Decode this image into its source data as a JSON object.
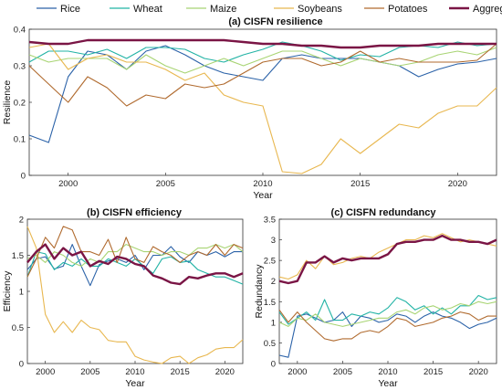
{
  "colors": {
    "Rice": "#2b62a8",
    "Wheat": "#22b3a5",
    "Maize": "#a8d473",
    "Soybeans": "#e8b74f",
    "Potatoes": "#b06a2e",
    "Aggregated": "#7a1545"
  },
  "legend": [
    "Rice",
    "Wheat",
    "Maize",
    "Soybeans",
    "Potatoes",
    "Aggregated"
  ],
  "chart_data": [
    {
      "id": "a",
      "type": "line",
      "title": "(a) CISFN resilience",
      "xlabel": "Year",
      "ylabel": "Resilience",
      "xlim": [
        1998,
        2022
      ],
      "ylim": [
        0,
        0.4
      ],
      "xticks": [
        2000,
        2005,
        2010,
        2015,
        2020
      ],
      "yticks": [
        0,
        0.1,
        0.2,
        0.3,
        0.4
      ],
      "ytick_labels": [
        "0",
        "0.1",
        "0.2",
        "0.3",
        "0.4"
      ],
      "x": [
        1998,
        1999,
        2000,
        2001,
        2002,
        2003,
        2004,
        2005,
        2006,
        2007,
        2008,
        2009,
        2010,
        2011,
        2012,
        2013,
        2014,
        2015,
        2016,
        2017,
        2018,
        2019,
        2020,
        2021,
        2022
      ],
      "series": [
        {
          "name": "Rice",
          "values": [
            0.11,
            0.09,
            0.27,
            0.34,
            0.33,
            0.29,
            0.34,
            0.355,
            0.33,
            0.3,
            0.28,
            0.27,
            0.26,
            0.32,
            0.33,
            0.32,
            0.32,
            0.32,
            0.31,
            0.3,
            0.27,
            0.29,
            0.305,
            0.31,
            0.32
          ]
        },
        {
          "name": "Wheat",
          "values": [
            0.31,
            0.34,
            0.34,
            0.33,
            0.345,
            0.32,
            0.35,
            0.35,
            0.345,
            0.32,
            0.31,
            0.33,
            0.345,
            0.365,
            0.355,
            0.34,
            0.315,
            0.33,
            0.325,
            0.35,
            0.355,
            0.35,
            0.365,
            0.355,
            0.36
          ]
        },
        {
          "name": "Maize",
          "values": [
            0.33,
            0.31,
            0.32,
            0.32,
            0.32,
            0.29,
            0.33,
            0.3,
            0.28,
            0.3,
            0.32,
            0.3,
            0.32,
            0.34,
            0.34,
            0.32,
            0.3,
            0.32,
            0.31,
            0.3,
            0.31,
            0.33,
            0.34,
            0.33,
            0.35
          ]
        },
        {
          "name": "Soybeans",
          "values": [
            0.35,
            0.36,
            0.29,
            0.32,
            0.33,
            0.31,
            0.31,
            0.29,
            0.26,
            0.28,
            0.22,
            0.2,
            0.19,
            0.01,
            0.005,
            0.03,
            0.1,
            0.06,
            0.1,
            0.14,
            0.13,
            0.17,
            0.19,
            0.19,
            0.24
          ]
        },
        {
          "name": "Potatoes",
          "values": [
            0.3,
            0.25,
            0.2,
            0.27,
            0.24,
            0.19,
            0.22,
            0.21,
            0.25,
            0.24,
            0.25,
            0.28,
            0.31,
            0.32,
            0.32,
            0.3,
            0.31,
            0.34,
            0.31,
            0.32,
            0.31,
            0.31,
            0.31,
            0.315,
            0.36
          ]
        },
        {
          "name": "Aggregated",
          "values": [
            0.365,
            0.36,
            0.36,
            0.37,
            0.37,
            0.37,
            0.37,
            0.37,
            0.37,
            0.37,
            0.37,
            0.365,
            0.36,
            0.36,
            0.355,
            0.355,
            0.35,
            0.35,
            0.355,
            0.355,
            0.355,
            0.36,
            0.36,
            0.36,
            0.36
          ]
        }
      ]
    },
    {
      "id": "b",
      "type": "line",
      "title": "(b) CISFN efficiency",
      "xlabel": "Year",
      "ylabel": "Efficiency",
      "xlim": [
        1998,
        2022
      ],
      "ylim": [
        0,
        2
      ],
      "xticks": [
        2000,
        2005,
        2010,
        2015,
        2020
      ],
      "yticks": [
        0,
        0.5,
        1,
        1.5,
        2
      ],
      "ytick_labels": [
        "0",
        "0.5",
        "1",
        "1.5",
        "2"
      ],
      "x": [
        1998,
        1999,
        2000,
        2001,
        2002,
        2003,
        2004,
        2005,
        2006,
        2007,
        2008,
        2009,
        2010,
        2011,
        2012,
        2013,
        2014,
        2015,
        2016,
        2017,
        2018,
        2019,
        2020,
        2021,
        2022
      ],
      "series": [
        {
          "name": "Rice",
          "values": [
            1.3,
            1.45,
            1.48,
            1.31,
            1.35,
            1.65,
            1.35,
            1.08,
            1.37,
            1.42,
            1.45,
            1.4,
            1.5,
            1.3,
            1.5,
            1.5,
            1.62,
            1.48,
            1.4,
            1.55,
            1.5,
            1.55,
            1.48,
            1.55,
            1.55
          ]
        },
        {
          "name": "Wheat",
          "values": [
            1.2,
            1.55,
            1.52,
            1.3,
            1.4,
            1.35,
            1.45,
            1.35,
            1.35,
            1.45,
            1.4,
            1.35,
            1.45,
            1.35,
            1.25,
            1.45,
            1.48,
            1.4,
            1.42,
            1.3,
            1.25,
            1.2,
            1.2,
            1.15,
            1.1
          ]
        },
        {
          "name": "Maize",
          "values": [
            1.45,
            1.5,
            1.4,
            1.55,
            1.5,
            1.4,
            1.35,
            1.45,
            1.4,
            1.55,
            1.55,
            1.65,
            1.6,
            1.55,
            1.55,
            1.5,
            1.55,
            1.55,
            1.5,
            1.6,
            1.6,
            1.65,
            1.6,
            1.65,
            1.55
          ]
        },
        {
          "name": "Soybeans",
          "values": [
            1.9,
            1.6,
            0.68,
            0.43,
            0.58,
            0.43,
            0.6,
            0.5,
            0.47,
            0.32,
            0.3,
            0.3,
            0.1,
            0.05,
            0.02,
            0.0,
            0.08,
            0.1,
            0.0,
            0.08,
            0.12,
            0.2,
            0.22,
            0.22,
            0.33
          ]
        },
        {
          "name": "Potatoes",
          "values": [
            1.2,
            1.45,
            1.75,
            1.6,
            1.9,
            1.85,
            1.55,
            1.55,
            1.5,
            1.72,
            1.4,
            1.75,
            1.45,
            1.4,
            1.62,
            1.55,
            1.5,
            1.4,
            1.5,
            1.55,
            1.5,
            1.65,
            1.5,
            1.65,
            1.6
          ]
        },
        {
          "name": "Aggregated",
          "values": [
            1.4,
            1.55,
            1.65,
            1.45,
            1.6,
            1.5,
            1.55,
            1.35,
            1.42,
            1.38,
            1.48,
            1.45,
            1.38,
            1.35,
            1.22,
            1.18,
            1.12,
            1.1,
            1.2,
            1.18,
            1.22,
            1.25,
            1.25,
            1.2,
            1.25
          ]
        }
      ]
    },
    {
      "id": "c",
      "type": "line",
      "title": "(c) CISFN redundancy",
      "xlabel": "Year",
      "ylabel": "Redundancy",
      "xlim": [
        1998,
        2022
      ],
      "ylim": [
        0,
        3.5
      ],
      "xticks": [
        2000,
        2005,
        2010,
        2015,
        2020
      ],
      "yticks": [
        0,
        0.5,
        1,
        1.5,
        2,
        2.5,
        3,
        3.5
      ],
      "ytick_labels": [
        "0",
        "0.5",
        "1",
        "1.5",
        "2",
        "2.5",
        "3",
        "3.5"
      ],
      "x": [
        1998,
        1999,
        2000,
        2001,
        2002,
        2003,
        2004,
        2005,
        2006,
        2007,
        2008,
        2009,
        2010,
        2011,
        2012,
        2013,
        2014,
        2015,
        2016,
        2017,
        2018,
        2019,
        2020,
        2021,
        2022
      ],
      "series": [
        {
          "name": "Rice",
          "values": [
            0.2,
            0.15,
            1.15,
            1.2,
            1.1,
            1.0,
            1.05,
            1.25,
            0.9,
            1.15,
            1.1,
            1.0,
            1.05,
            1.2,
            1.15,
            1.0,
            1.15,
            1.25,
            1.15,
            1.1,
            1.0,
            0.85,
            0.95,
            1.0,
            1.1
          ]
        },
        {
          "name": "Wheat",
          "values": [
            1.25,
            0.95,
            1.1,
            1.25,
            1.05,
            1.55,
            1.05,
            1.05,
            1.2,
            1.15,
            1.25,
            1.2,
            1.35,
            1.6,
            1.5,
            1.3,
            1.4,
            1.2,
            1.35,
            1.2,
            1.4,
            1.4,
            1.65,
            1.55,
            1.6
          ]
        },
        {
          "name": "Maize",
          "values": [
            1.0,
            0.9,
            1.1,
            1.05,
            1.2,
            1.0,
            0.95,
            0.9,
            0.95,
            1.0,
            1.05,
            1.1,
            1.1,
            1.25,
            1.3,
            1.2,
            1.35,
            1.4,
            1.3,
            1.35,
            1.45,
            1.4,
            1.5,
            1.45,
            1.5
          ]
        },
        {
          "name": "Soybeans",
          "values": [
            2.1,
            2.05,
            2.15,
            2.5,
            2.3,
            2.6,
            2.4,
            2.45,
            2.55,
            2.6,
            2.55,
            2.7,
            2.8,
            2.9,
            3.0,
            3.0,
            3.1,
            3.05,
            3.15,
            3.05,
            2.95,
            3.0,
            2.95,
            2.9,
            2.85
          ]
        },
        {
          "name": "Potatoes",
          "values": [
            1.3,
            1.0,
            1.25,
            1.0,
            0.8,
            0.6,
            0.55,
            0.6,
            0.6,
            0.75,
            0.8,
            0.75,
            0.9,
            1.1,
            1.05,
            0.9,
            0.95,
            1.0,
            1.1,
            1.15,
            1.25,
            1.2,
            1.05,
            1.15,
            1.15
          ]
        },
        {
          "name": "Aggregated",
          "values": [
            2.0,
            1.95,
            2.0,
            2.45,
            2.45,
            2.6,
            2.45,
            2.55,
            2.5,
            2.55,
            2.55,
            2.55,
            2.65,
            2.9,
            2.95,
            2.95,
            3.0,
            3.0,
            3.1,
            3.0,
            3.0,
            2.95,
            2.95,
            2.9,
            3.0
          ]
        }
      ]
    }
  ]
}
